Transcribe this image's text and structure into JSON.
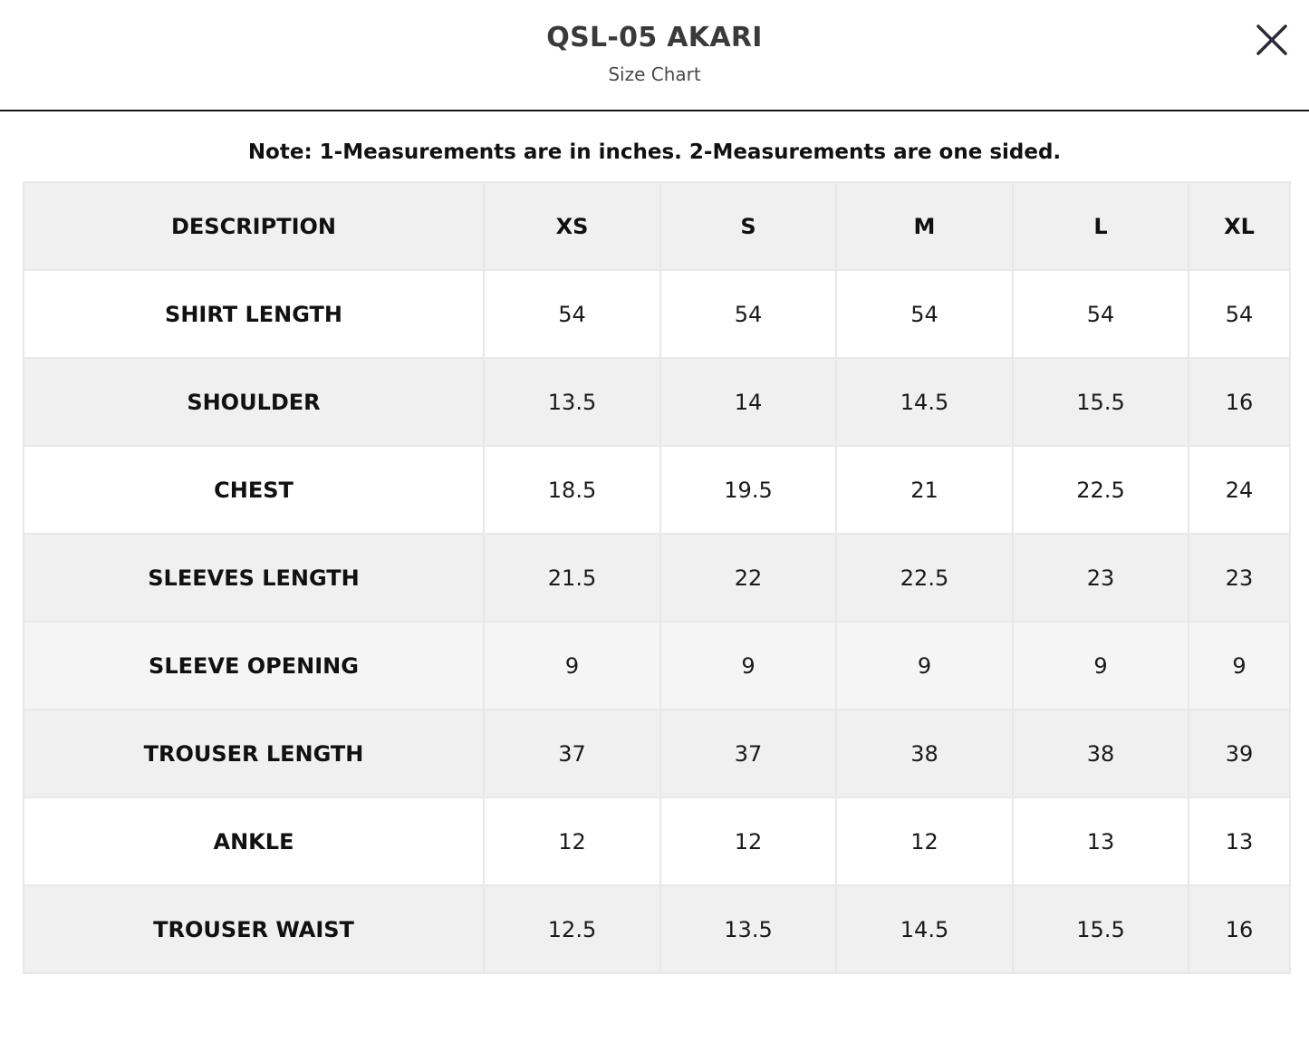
{
  "header": {
    "title": "QSL-05 AKARI",
    "subtitle": "Size Chart"
  },
  "close_icon": "close-icon",
  "note": "Note: 1-Measurements are in inches. 2-Measurements are one sided.",
  "table": {
    "columns": [
      "DESCRIPTION",
      "XS",
      "S",
      "M",
      "L",
      "XL"
    ],
    "rows": [
      {
        "label": "SHIRT LENGTH",
        "values": [
          "54",
          "54",
          "54",
          "54",
          "54"
        ]
      },
      {
        "label": "SHOULDER",
        "values": [
          "13.5",
          "14",
          "14.5",
          "15.5",
          "16"
        ]
      },
      {
        "label": "CHEST",
        "values": [
          "18.5",
          "19.5",
          "21",
          "22.5",
          "24"
        ]
      },
      {
        "label": "SLEEVES LENGTH",
        "values": [
          "21.5",
          "22",
          "22.5",
          "23",
          "23"
        ]
      },
      {
        "label": "SLEEVE OPENING",
        "values": [
          "9",
          "9",
          "9",
          "9",
          "9"
        ]
      },
      {
        "label": "TROUSER LENGTH",
        "values": [
          "37",
          "37",
          "38",
          "38",
          "39"
        ]
      },
      {
        "label": "ANKLE",
        "values": [
          "12",
          "12",
          "12",
          "13",
          "13"
        ]
      },
      {
        "label": "TROUSER WAIST",
        "values": [
          "12.5",
          "13.5",
          "14.5",
          "15.5",
          "16"
        ]
      }
    ]
  },
  "colors": {
    "header_row_bg": "#f0f0f0",
    "alt_row_bg": "#f0f0f0",
    "row_bg": "#ffffff",
    "border": "#e8e8e8",
    "divider": "#1a1a1a"
  }
}
